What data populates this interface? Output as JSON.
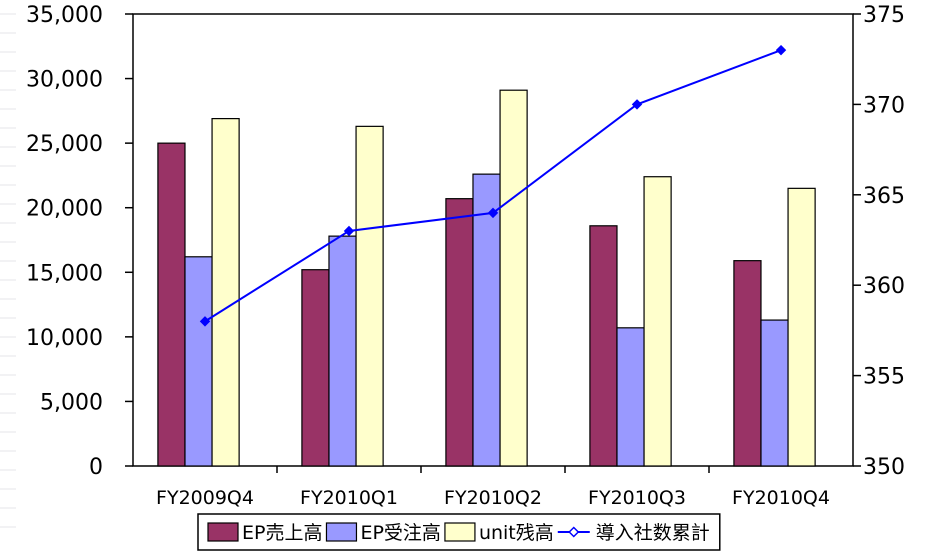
{
  "chart_data": {
    "type": "bar",
    "categories": [
      "FY2009Q4",
      "FY2010Q1",
      "FY2010Q2",
      "FY2010Q3",
      "FY2010Q4"
    ],
    "series": [
      {
        "name": "EP売上高",
        "type": "bar",
        "axis": "left",
        "color": "#993366",
        "values": [
          25000,
          15200,
          20700,
          18600,
          15900
        ]
      },
      {
        "name": "EP受注高",
        "type": "bar",
        "axis": "left",
        "color": "#9999ff",
        "values": [
          16200,
          17800,
          22600,
          10700,
          11300
        ]
      },
      {
        "name": "unit残高",
        "type": "bar",
        "axis": "left",
        "color": "#ffffcc",
        "values": [
          26900,
          26300,
          29100,
          22400,
          21500
        ]
      },
      {
        "name": "導入社数累計",
        "type": "line",
        "axis": "right",
        "color": "#0000ff",
        "values": [
          358,
          363,
          364,
          370,
          373
        ]
      }
    ],
    "y_left": {
      "min": 0,
      "max": 35000,
      "step": 5000,
      "tick_labels": [
        "0",
        "5,000",
        "10,000",
        "15,000",
        "20,000",
        "25,000",
        "30,000",
        "35,000"
      ]
    },
    "y_right": {
      "min": 350,
      "max": 375,
      "step": 5,
      "tick_labels": [
        "350",
        "355",
        "360",
        "365",
        "370",
        "375"
      ]
    },
    "grid": false,
    "legend_position": "bottom"
  }
}
